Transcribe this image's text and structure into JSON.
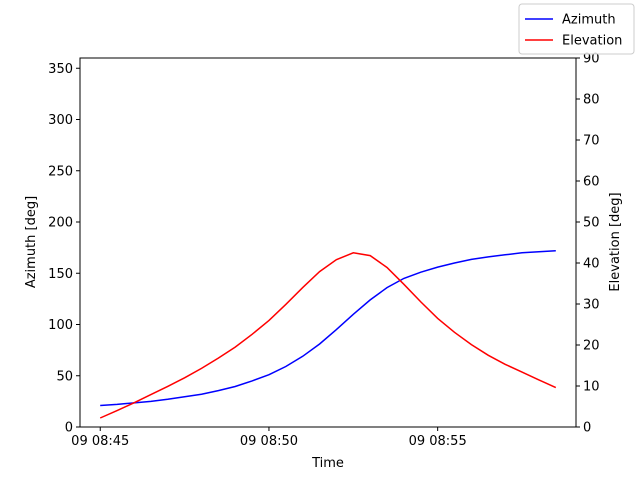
{
  "chart_data": {
    "type": "line",
    "title": "",
    "xlabel": "Time",
    "ylabel": "Azimuth [deg]",
    "ylabel_right": "Elevation [deg]",
    "x_ticks": [
      {
        "label": "09 08:45",
        "minutes": 0
      },
      {
        "label": "09 08:50",
        "minutes": 5
      },
      {
        "label": "09 08:55",
        "minutes": 10
      }
    ],
    "xlim_labels": [
      "09 08:44.4",
      "09 08:59.1"
    ],
    "x": [
      "08:45:00",
      "08:45:30",
      "08:46:00",
      "08:46:30",
      "08:47:00",
      "08:47:30",
      "08:48:00",
      "08:48:30",
      "08:49:00",
      "08:49:30",
      "08:50:00",
      "08:50:30",
      "08:51:00",
      "08:51:30",
      "08:52:00",
      "08:52:30",
      "08:53:00",
      "08:53:30",
      "08:54:00",
      "08:54:30",
      "08:55:00",
      "08:55:30",
      "08:56:00",
      "08:56:30",
      "08:57:00",
      "08:57:30",
      "08:58:00",
      "08:58:30"
    ],
    "ylim": [
      0,
      360
    ],
    "ylim_right": [
      0,
      90
    ],
    "yticks": [
      0,
      50,
      100,
      150,
      200,
      250,
      300,
      350
    ],
    "yticks_right": [
      0,
      10,
      20,
      30,
      40,
      50,
      60,
      70,
      80,
      90
    ],
    "series": [
      {
        "name": "Azimuth",
        "axis": "left",
        "color": "#0000ff",
        "values": [
          21,
          22,
          23.5,
          25,
          27,
          29.5,
          32,
          35.5,
          39.5,
          45,
          51,
          59,
          69,
          81,
          95,
          110,
          124,
          136,
          145,
          151,
          156,
          160,
          163.5,
          166,
          168,
          170,
          171,
          172
        ]
      },
      {
        "name": "Elevation",
        "axis": "right",
        "color": "#ff0000",
        "values": [
          2.2,
          4,
          5.9,
          7.9,
          9.9,
          12,
          14.3,
          16.8,
          19.5,
          22.6,
          26,
          29.9,
          34,
          37.9,
          40.8,
          42.5,
          41.8,
          38.9,
          34.8,
          30.5,
          26.5,
          23.1,
          20.1,
          17.5,
          15.3,
          13.4,
          11.5,
          9.6
        ]
      }
    ],
    "legend_position": "top-right",
    "grid": false
  }
}
